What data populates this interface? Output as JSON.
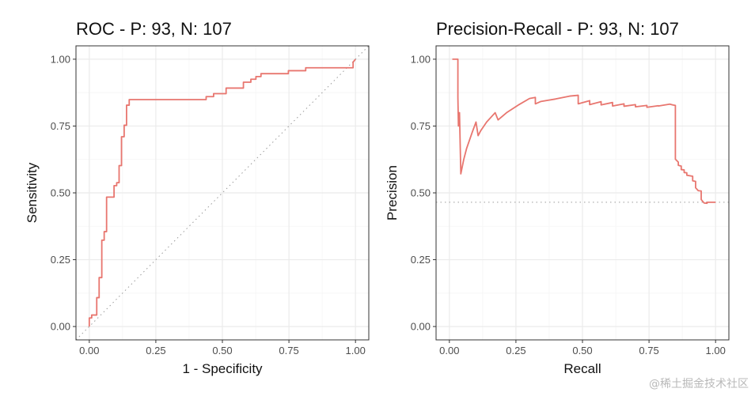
{
  "colors": {
    "curve": "#E8766F",
    "reference": "#9a9a9a",
    "grid_major": "#EBEBEB",
    "grid_minor": "#F5F5F5",
    "panel_border": "#333333"
  },
  "watermark": "@稀土掘金技术社区",
  "chart_data": [
    {
      "type": "line",
      "title": "ROC - P: 93, N: 107",
      "xlabel": "1 - Specificity",
      "ylabel": "Sensitivity",
      "xlim": [
        0,
        1
      ],
      "ylim": [
        0,
        1
      ],
      "xticks": [
        "0.00",
        "0.25",
        "0.50",
        "0.75",
        "1.00"
      ],
      "yticks": [
        "0.00",
        "0.25",
        "0.50",
        "0.75",
        "1.00"
      ],
      "grid": true,
      "reference": {
        "kind": "diagonal",
        "from": [
          0,
          0
        ],
        "to": [
          1,
          1
        ]
      },
      "series": [
        {
          "x": [
            0,
            0,
            0.009,
            0.009,
            0.028,
            0.028,
            0.037,
            0.037,
            0.047,
            0.047,
            0.056,
            0.056,
            0.065,
            0.065,
            0.075,
            0.075,
            0.093,
            0.093,
            0.103,
            0.103,
            0.112,
            0.112,
            0.121,
            0.121,
            0.131,
            0.131,
            0.14,
            0.14,
            0.15,
            0.15,
            0.159,
            0.159,
            0.439,
            0.439,
            0.467,
            0.467,
            0.514,
            0.514,
            0.533,
            0.533,
            0.579,
            0.579,
            0.607,
            0.607,
            0.626,
            0.626,
            0.645,
            0.645,
            0.748,
            0.748,
            0.813,
            0.813,
            0.991,
            0.991,
            1
          ],
          "y": [
            0,
            0.032,
            0.032,
            0.043,
            0.043,
            0.108,
            0.108,
            0.183,
            0.183,
            0.323,
            0.323,
            0.355,
            0.355,
            0.484,
            0.484,
            0.484,
            0.484,
            0.527,
            0.527,
            0.538,
            0.538,
            0.602,
            0.602,
            0.71,
            0.71,
            0.753,
            0.753,
            0.828,
            0.828,
            0.849,
            0.849,
            0.849,
            0.849,
            0.86,
            0.86,
            0.871,
            0.871,
            0.892,
            0.892,
            0.892,
            0.892,
            0.914,
            0.914,
            0.925,
            0.925,
            0.935,
            0.935,
            0.946,
            0.946,
            0.957,
            0.957,
            0.968,
            0.968,
            0.989,
            1
          ]
        }
      ]
    },
    {
      "type": "line",
      "title": "Precision-Recall - P: 93, N: 107",
      "xlabel": "Recall",
      "ylabel": "Precision",
      "xlim": [
        0,
        1
      ],
      "ylim": [
        0,
        1
      ],
      "xticks": [
        "0.00",
        "0.25",
        "0.50",
        "0.75",
        "1.00"
      ],
      "yticks": [
        "0.00",
        "0.25",
        "0.50",
        "0.75",
        "1.00"
      ],
      "grid": true,
      "reference": {
        "kind": "horizontal",
        "y": 0.465
      },
      "series": [
        {
          "x": [
            0.011,
            0.032,
            0.032,
            0.034,
            0.038,
            0.038,
            0.043,
            0.043,
            0.054,
            0.065,
            0.086,
            0.1,
            0.108,
            0.108,
            0.118,
            0.14,
            0.172,
            0.183,
            0.183,
            0.215,
            0.258,
            0.301,
            0.323,
            0.323,
            0.344,
            0.344,
            0.398,
            0.452,
            0.484,
            0.484,
            0.527,
            0.527,
            0.57,
            0.57,
            0.613,
            0.613,
            0.656,
            0.656,
            0.699,
            0.699,
            0.742,
            0.742,
            0.785,
            0.785,
            0.828,
            0.839,
            0.849,
            0.849,
            0.86,
            0.86,
            0.871,
            0.871,
            0.882,
            0.882,
            0.892,
            0.892,
            0.914,
            0.914,
            0.925,
            0.925,
            0.935,
            0.946,
            0.946,
            0.957,
            0.968,
            0.968,
            1
          ],
          "y": [
            1,
            1,
            0.857,
            0.75,
            0.8,
            0.8,
            0.571,
            0.571,
            0.625,
            0.667,
            0.727,
            0.765,
            0.714,
            0.714,
            0.733,
            0.765,
            0.8,
            0.773,
            0.773,
            0.8,
            0.828,
            0.853,
            0.857,
            0.833,
            0.842,
            0.842,
            0.851,
            0.862,
            0.865,
            0.833,
            0.845,
            0.83,
            0.841,
            0.829,
            0.838,
            0.825,
            0.833,
            0.824,
            0.83,
            0.822,
            0.827,
            0.82,
            0.826,
            0.825,
            0.832,
            0.829,
            0.827,
            0.626,
            0.615,
            0.603,
            0.6,
            0.587,
            0.586,
            0.576,
            0.575,
            0.566,
            0.562,
            0.545,
            0.543,
            0.519,
            0.508,
            0.507,
            0.475,
            0.462,
            0.461,
            0.465,
            0.465
          ]
        }
      ]
    }
  ]
}
